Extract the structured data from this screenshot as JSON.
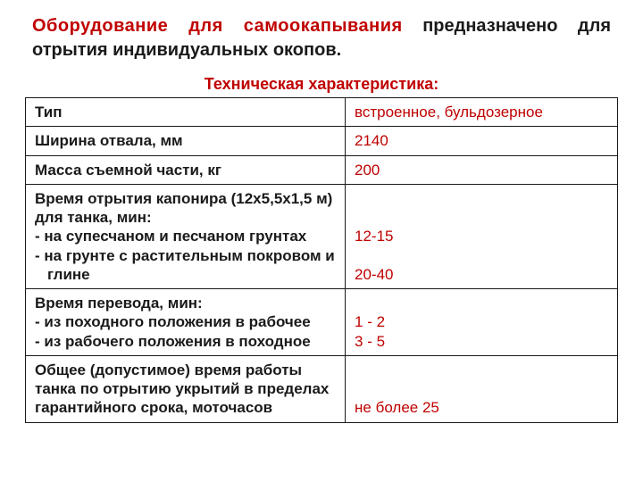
{
  "colors": {
    "accent": "#c00000",
    "text": "#1a1a1a",
    "border": "#1a1a1a",
    "background": "#ffffff"
  },
  "typography": {
    "heading_fontsize_pt": 15,
    "subtitle_fontsize_pt": 13,
    "cell_fontsize_pt": 13,
    "font_family": "Arial"
  },
  "heading": {
    "em": "Оборудование для самоокапывания",
    "rest": " предназначено для отрытия индивидуальных окопов."
  },
  "subtitle": "Техническая характеристика:",
  "table": {
    "type": "table",
    "column_widths_pct": [
      54,
      46
    ],
    "rows": [
      {
        "label": "Тип",
        "value": "встроенное, бульдозерное"
      },
      {
        "label": "Ширина отвала, мм",
        "value": "2140"
      },
      {
        "label": "Масса съемной части, кг",
        "value": "200"
      },
      {
        "label_lines": [
          "Время отрытия капонира (12х5,5х1,5 м) для танка, мин:",
          "- на супесчаном и песчаном грунтах",
          "- на грунте с растительным покровом и",
          "  глине"
        ],
        "value_lines": [
          "",
          "",
          "12-15",
          "",
          "20-40"
        ]
      },
      {
        "label_lines": [
          "Время перевода, мин:",
          "   - из походного положения в рабочее",
          "   - из рабочего положения в походное"
        ],
        "value_lines": [
          "",
          "1 - 2",
          "3 - 5"
        ]
      },
      {
        "label_lines": [
          "Общее (допустимое) время работы танка по отрытию укрытий в пределах гарантийного срока, моточасов"
        ],
        "value_lines": [
          "",
          "",
          "не более 25"
        ]
      }
    ]
  }
}
